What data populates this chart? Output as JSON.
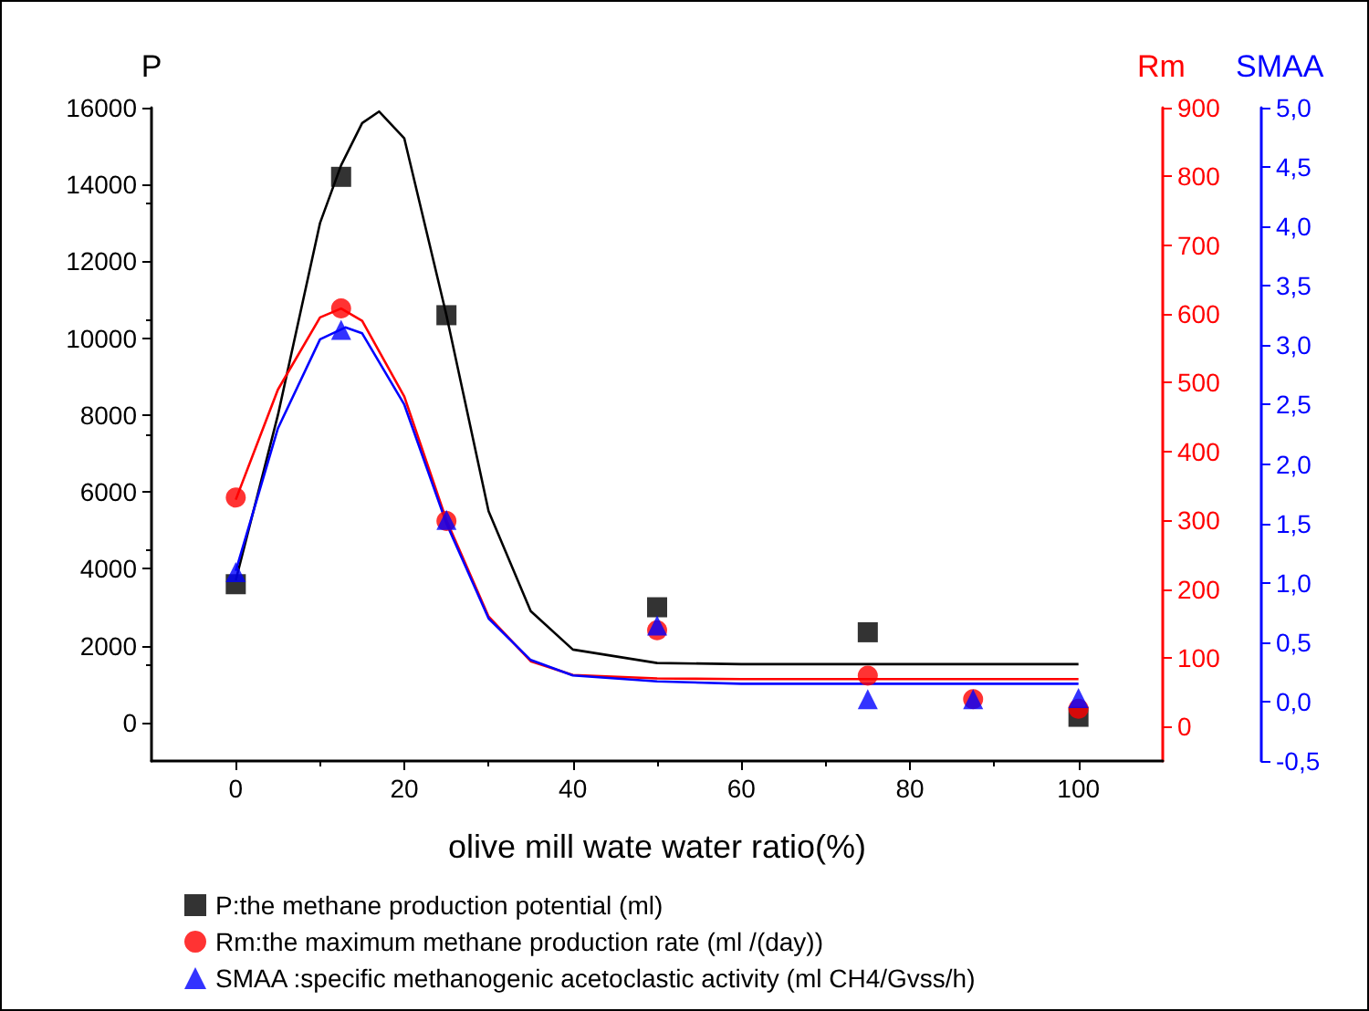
{
  "chart_data": {
    "type": "scatter",
    "xlabel": "olive mill wate water ratio(%)",
    "ylabel": "P",
    "y2label": "Rm",
    "y3label": "SMAA",
    "xlim": [
      -10,
      110
    ],
    "xticks": [
      0,
      20,
      40,
      60,
      80,
      100
    ],
    "ylim": [
      -1000,
      16000
    ],
    "yticks": [
      0,
      2000,
      4000,
      6000,
      8000,
      10000,
      12000,
      14000,
      16000
    ],
    "y2lim": [
      -50,
      900
    ],
    "y2ticks": [
      0,
      100,
      200,
      300,
      400,
      500,
      600,
      700,
      800,
      900
    ],
    "y3lim": [
      -0.5,
      5
    ],
    "y3ticks": [
      {
        "value": -0.5,
        "label": "-0,5"
      },
      {
        "value": 0,
        "label": "0,0"
      },
      {
        "value": 0.5,
        "label": "0,5"
      },
      {
        "value": 1,
        "label": "1,0"
      },
      {
        "value": 1.5,
        "label": "1,5"
      },
      {
        "value": 2,
        "label": "2,0"
      },
      {
        "value": 2.5,
        "label": "2,5"
      },
      {
        "value": 3,
        "label": "3,0"
      },
      {
        "value": 3.5,
        "label": "3,5"
      },
      {
        "value": 4,
        "label": "4,0"
      },
      {
        "value": 4.5,
        "label": "4,5"
      },
      {
        "value": 5,
        "label": "5,0"
      }
    ],
    "x": [
      0,
      12.5,
      25,
      50,
      75,
      87.5,
      100
    ],
    "legend": "bottom",
    "grid": false,
    "series": [
      {
        "name": "P:the methane production potential (ml)",
        "color": "#000000",
        "marker": "square",
        "values": [
          3600,
          14200,
          10600,
          3000,
          2350,
          null,
          150
        ]
      },
      {
        "name": "Rm:the maximum methane production rate (ml /(day))",
        "color": "#ff0000",
        "marker": "circle",
        "axis": "y2",
        "values": [
          333,
          608,
          299,
          140,
          74,
          40,
          26
        ]
      },
      {
        "name": "SMAA :specific methanogenic acetoclastic activity (ml CH4/Gvss/h)",
        "color": "#0000ff",
        "marker": "triangle",
        "axis": "y3",
        "values": [
          1.09,
          3.13,
          1.53,
          0.64,
          0.02,
          0.02,
          0.03
        ]
      },
      {
        "type": "line",
        "color": "#000000",
        "marker": "none",
        "x": [
          0,
          5,
          10,
          12.5,
          15,
          17,
          20,
          25,
          30,
          35,
          40,
          50,
          60,
          100
        ],
        "values": [
          3700,
          8000,
          13000,
          14500,
          15600,
          15900,
          15200,
          10600,
          5500,
          2900,
          1900,
          1550,
          1520,
          1520
        ]
      },
      {
        "type": "line",
        "color": "#ff0000",
        "marker": "none",
        "axis": "y2",
        "x": [
          0,
          5,
          10,
          12.5,
          15,
          20,
          25,
          30,
          35,
          40,
          50,
          60,
          100
        ],
        "values": [
          330,
          490,
          595,
          608,
          590,
          480,
          300,
          160,
          95,
          75,
          70,
          69,
          69
        ]
      },
      {
        "type": "line",
        "color": "#0000ff",
        "marker": "none",
        "axis": "y3",
        "x": [
          0,
          5,
          10,
          13,
          15,
          20,
          25,
          30,
          35,
          40,
          50,
          60,
          100
        ],
        "values": [
          1.1,
          2.3,
          3.05,
          3.15,
          3.1,
          2.5,
          1.5,
          0.7,
          0.35,
          0.22,
          0.17,
          0.15,
          0.15
        ]
      }
    ]
  }
}
